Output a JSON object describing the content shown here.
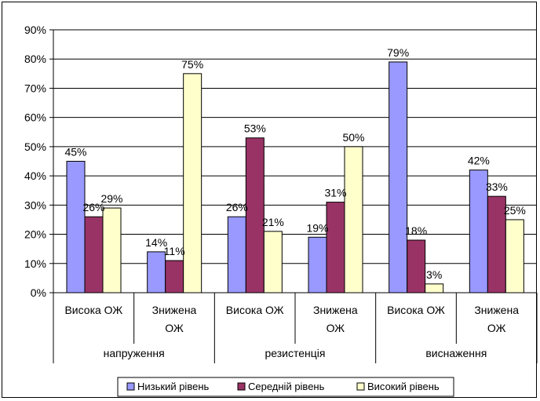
{
  "chart_data": {
    "type": "bar",
    "groups": [
      "напруження",
      "резистенція",
      "виснаження"
    ],
    "categories": [
      "Висока ОЖ",
      "Знижена ОЖ",
      "Висока ОЖ",
      "Знижена ОЖ",
      "Висока ОЖ",
      "Знижена ОЖ"
    ],
    "series": [
      {
        "name": "Низький рівень",
        "values": [
          45,
          14,
          26,
          19,
          79,
          42
        ]
      },
      {
        "name": "Середній рівень",
        "values": [
          26,
          11,
          53,
          31,
          18,
          33
        ]
      },
      {
        "name": "Високий рівень",
        "values": [
          29,
          75,
          21,
          50,
          3,
          25
        ]
      }
    ],
    "data_labels": [
      [
        "45%",
        "14%",
        "26%",
        "19%",
        "79%",
        "42%"
      ],
      [
        "26%",
        "11%",
        "53%",
        "31%",
        "18%",
        "33%"
      ],
      [
        "29%",
        "75%",
        "21%",
        "50%",
        "3%",
        "25%"
      ]
    ],
    "ylim": [
      0,
      90
    ],
    "ytick_labels": [
      "0%",
      "10%",
      "20%",
      "30%",
      "40%",
      "50%",
      "60%",
      "70%",
      "80%",
      "90%"
    ],
    "grid": true,
    "legend_position": "bottom",
    "colors": {
      "series": [
        "#9999ff",
        "#993366",
        "#ffffcc"
      ],
      "grid": "#000000",
      "axis": "#000000"
    },
    "title": "",
    "xlabel": "",
    "ylabel": ""
  }
}
